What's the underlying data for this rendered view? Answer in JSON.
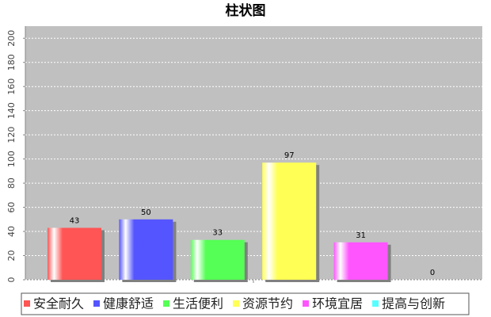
{
  "chart_data": {
    "type": "bar",
    "title": "柱状图",
    "categories": [
      null
    ],
    "series": [
      {
        "name": "安全耐久",
        "color": "#ff5555",
        "values": [
          43
        ]
      },
      {
        "name": "健康舒适",
        "color": "#5555ff",
        "values": [
          50
        ]
      },
      {
        "name": "生活便利",
        "color": "#55ff55",
        "values": [
          33
        ]
      },
      {
        "name": "资源节约",
        "color": "#ffff55",
        "values": [
          97
        ]
      },
      {
        "name": "环境宜居",
        "color": "#ff55ff",
        "values": [
          31
        ]
      },
      {
        "name": "提高与创新",
        "color": "#55ffff",
        "values": [
          0
        ]
      }
    ],
    "ylim": [
      0,
      210
    ],
    "yticks": [
      0,
      20,
      40,
      60,
      80,
      100,
      120,
      140,
      160,
      180,
      200
    ],
    "grid": true,
    "legend": "bottom"
  }
}
